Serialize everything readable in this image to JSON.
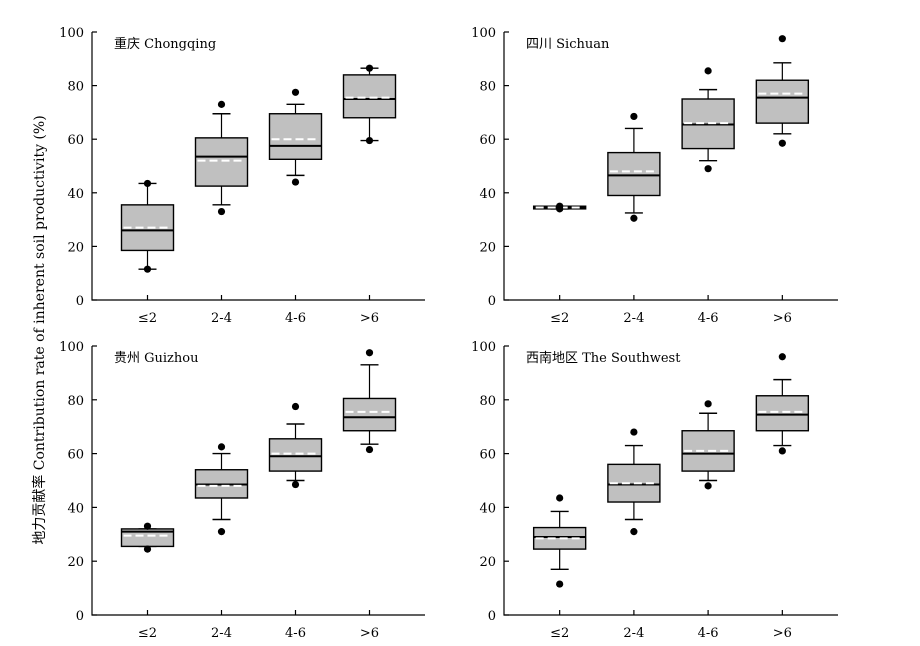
{
  "figure": {
    "ylabel": "地力贡献率 Contribution rate of inherent soil productivity (%)"
  },
  "chart_data": [
    {
      "type": "box",
      "title": "重庆 Chongqing",
      "categories": [
        "≤2",
        "2-4",
        "4-6",
        ">6"
      ],
      "ylim": [
        0,
        100
      ],
      "yticks": [
        0,
        20,
        40,
        60,
        80,
        100
      ],
      "boxes": [
        {
          "category": "≤2",
          "whisker_low": 11.5,
          "q1": 18.5,
          "median": 26,
          "mean": 27,
          "q3": 35.5,
          "whisker_high": 43.5,
          "outliers": [
            11.5,
            43.5
          ]
        },
        {
          "category": "2-4",
          "whisker_low": 35.5,
          "q1": 42.5,
          "median": 53.5,
          "mean": 52,
          "q3": 60.5,
          "whisker_high": 69.5,
          "outliers": [
            33,
            73
          ]
        },
        {
          "category": "4-6",
          "whisker_low": 46.5,
          "q1": 52.5,
          "median": 57.5,
          "mean": 60,
          "q3": 69.5,
          "whisker_high": 73,
          "outliers": [
            44,
            77.5
          ]
        },
        {
          "category": ">6",
          "whisker_low": 59.5,
          "q1": 68,
          "median": 75,
          "mean": 75.5,
          "q3": 84,
          "whisker_high": 86.5,
          "outliers": [
            59.5,
            86.5
          ]
        }
      ]
    },
    {
      "type": "box",
      "title": "四川 Sichuan",
      "categories": [
        "≤2",
        "2-4",
        "4-6",
        ">6"
      ],
      "ylim": [
        0,
        100
      ],
      "yticks": [
        0,
        20,
        40,
        60,
        80,
        100
      ],
      "boxes": [
        {
          "category": "≤2",
          "whisker_low": 34,
          "q1": 34,
          "median": 34.5,
          "mean": 34.5,
          "q3": 35,
          "whisker_high": 35,
          "outliers": [
            34,
            35
          ]
        },
        {
          "category": "2-4",
          "whisker_low": 32.5,
          "q1": 39,
          "median": 46.5,
          "mean": 48,
          "q3": 55,
          "whisker_high": 64,
          "outliers": [
            30.5,
            68.5
          ]
        },
        {
          "category": "4-6",
          "whisker_low": 52,
          "q1": 56.5,
          "median": 65.5,
          "mean": 66,
          "q3": 75,
          "whisker_high": 78.5,
          "outliers": [
            49,
            85.5
          ]
        },
        {
          "category": ">6",
          "whisker_low": 62,
          "q1": 66,
          "median": 75.5,
          "mean": 77,
          "q3": 82,
          "whisker_high": 88.5,
          "outliers": [
            58.5,
            97.5
          ]
        }
      ]
    },
    {
      "type": "box",
      "title": "贵州 Guizhou",
      "categories": [
        "≤2",
        "2-4",
        "4-6",
        ">6"
      ],
      "ylim": [
        0,
        100
      ],
      "yticks": [
        0,
        20,
        40,
        60,
        80,
        100
      ],
      "boxes": [
        {
          "category": "≤2",
          "whisker_low": 25.5,
          "q1": 25.5,
          "median": 31,
          "mean": 29.5,
          "q3": 32,
          "whisker_high": 32,
          "outliers": [
            24.5,
            33
          ]
        },
        {
          "category": "2-4",
          "whisker_low": 35.5,
          "q1": 43.5,
          "median": 48.5,
          "mean": 48,
          "q3": 54,
          "whisker_high": 60,
          "outliers": [
            31,
            62.5
          ]
        },
        {
          "category": "4-6",
          "whisker_low": 50,
          "q1": 53.5,
          "median": 59,
          "mean": 60,
          "q3": 65.5,
          "whisker_high": 71,
          "outliers": [
            48.5,
            77.5
          ]
        },
        {
          "category": ">6",
          "whisker_low": 63.5,
          "q1": 68.5,
          "median": 73.5,
          "mean": 75.5,
          "q3": 80.5,
          "whisker_high": 93,
          "outliers": [
            61.5,
            97.5
          ]
        }
      ]
    },
    {
      "type": "box",
      "title": "西南地区 The Southwest",
      "categories": [
        "≤2",
        "2-4",
        "4-6",
        ">6"
      ],
      "ylim": [
        0,
        100
      ],
      "yticks": [
        0,
        20,
        40,
        60,
        80,
        100
      ],
      "boxes": [
        {
          "category": "≤2",
          "whisker_low": 17,
          "q1": 24.5,
          "median": 29,
          "mean": 28.5,
          "q3": 32.5,
          "whisker_high": 38.5,
          "outliers": [
            11.5,
            43.5
          ]
        },
        {
          "category": "2-4",
          "whisker_low": 35.5,
          "q1": 42,
          "median": 48.5,
          "mean": 49,
          "q3": 56,
          "whisker_high": 63,
          "outliers": [
            31,
            68
          ]
        },
        {
          "category": "4-6",
          "whisker_low": 50,
          "q1": 53.5,
          "median": 60,
          "mean": 61,
          "q3": 68.5,
          "whisker_high": 75,
          "outliers": [
            48,
            78.5
          ]
        },
        {
          "category": ">6",
          "whisker_low": 63,
          "q1": 68.5,
          "median": 74.5,
          "mean": 75.5,
          "q3": 81.5,
          "whisker_high": 87.5,
          "outliers": [
            61,
            96
          ]
        }
      ]
    }
  ]
}
